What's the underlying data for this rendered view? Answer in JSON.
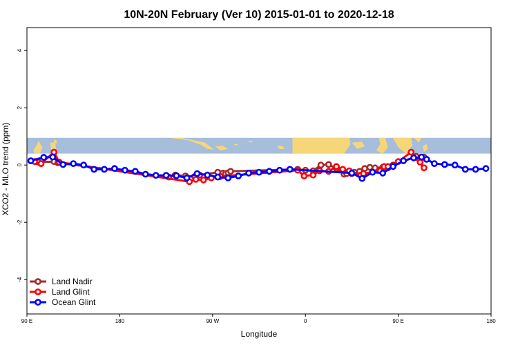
{
  "chart_data": {
    "type": "line",
    "title": "10N-20N February (Ver 10)   2015-01-01 to 2020-12-18",
    "xlabel": "Longitude",
    "ylabel": "XCO2 - MLO trend (ppm)",
    "xlim": [
      90,
      450
    ],
    "ylim": [
      -5.2,
      4.8
    ],
    "x_ticks": [
      {
        "value": 90,
        "label": "90 E"
      },
      {
        "value": 162,
        "label": "180"
      },
      {
        "value": 234,
        "label": "90 W"
      },
      {
        "value": 306,
        "label": "0"
      },
      {
        "value": 378,
        "label": "90 E"
      },
      {
        "value": 450,
        "label": "180"
      }
    ],
    "y_ticks": [
      -4,
      -2,
      0,
      2,
      4
    ],
    "map_band": {
      "ymin": 0.4,
      "ymax": 0.95,
      "ocean_color": "#A6BDDB",
      "land_color": "#F5D77A"
    },
    "series": [
      {
        "name": "Land Nadir",
        "color": "#A52A2A",
        "x": [
          97,
          99,
          111,
          114,
          200,
          205,
          213,
          220,
          224,
          238,
          242,
          244,
          246,
          248,
          300,
          306,
          312,
          318,
          324,
          330,
          336,
          338,
          342,
          344,
          348,
          352,
          356,
          360,
          366,
          370,
          374,
          392,
          398
        ],
        "values": [
          0.12,
          0.1,
          0.12,
          0.08,
          -0.42,
          -0.35,
          -0.38,
          -0.4,
          -0.35,
          -0.25,
          -0.28,
          -0.3,
          -0.27,
          -0.22,
          -0.15,
          -0.18,
          -0.2,
          0.0,
          0.02,
          -0.12,
          -0.32,
          -0.3,
          -0.3,
          -0.25,
          -0.22,
          -0.12,
          -0.08,
          -0.1,
          -0.08,
          -0.1,
          0.0,
          0.3,
          0.28
        ]
      },
      {
        "name": "Land Glint",
        "color": "#FF0000",
        "x": [
          96,
          101,
          111,
          115,
          216,
          221,
          227,
          233,
          240,
          300,
          305,
          312,
          317,
          324,
          330,
          335,
          340,
          349,
          351,
          364,
          367,
          370,
          378,
          388,
          390,
          395,
          398
        ],
        "values": [
          0.12,
          0.05,
          0.45,
          0.1,
          -0.58,
          -0.5,
          -0.52,
          -0.45,
          -0.4,
          -0.18,
          -0.38,
          -0.35,
          -0.2,
          -0.22,
          -0.05,
          -0.15,
          -0.2,
          -0.35,
          -0.3,
          -0.2,
          -0.05,
          -0.05,
          0.12,
          0.45,
          0.25,
          0.1,
          -0.1
        ]
      },
      {
        "name": "Ocean Glint",
        "color": "#0000FF",
        "x": [
          93,
          103,
          110,
          118,
          126,
          134,
          142,
          150,
          158,
          166,
          174,
          182,
          190,
          198,
          206,
          214,
          222,
          230,
          238,
          246,
          254,
          262,
          270,
          278,
          286,
          294,
          342,
          350,
          358,
          366,
          374,
          382,
          390,
          396,
          400,
          406,
          414,
          422,
          430,
          438,
          446
        ],
        "values": [
          0.15,
          0.27,
          0.28,
          0.02,
          0.05,
          0.0,
          -0.15,
          -0.15,
          -0.12,
          -0.18,
          -0.22,
          -0.32,
          -0.36,
          -0.36,
          -0.37,
          -0.45,
          -0.3,
          -0.35,
          -0.42,
          -0.45,
          -0.38,
          -0.28,
          -0.25,
          -0.22,
          -0.18,
          -0.15,
          -0.28,
          -0.47,
          -0.25,
          -0.28,
          -0.05,
          0.15,
          0.25,
          0.28,
          0.2,
          0.05,
          0.02,
          0.0,
          -0.15,
          -0.15,
          -0.12
        ]
      }
    ],
    "legend": {
      "position": "bottom-left",
      "entries": [
        "Land Nadir",
        "Land Glint",
        "Ocean Glint"
      ]
    }
  }
}
